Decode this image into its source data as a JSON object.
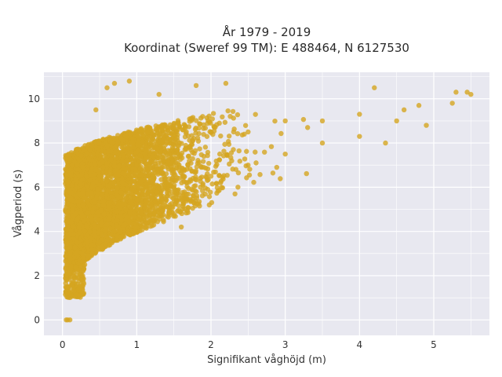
{
  "chart_data": {
    "type": "scatter",
    "title_line1": "År 1979 - 2019",
    "title_line2": "Koordinat (Sweref 99 TM): E 488464, N 6127530",
    "xlabel": "Signifikant våghöjd (m)",
    "ylabel": "Vågperiod (s)",
    "xlim": [
      -0.25,
      5.75
    ],
    "ylim": [
      -0.7,
      11.2
    ],
    "x_ticks": [
      0,
      1,
      2,
      3,
      4,
      5
    ],
    "y_ticks": [
      0,
      2,
      4,
      6,
      8,
      10
    ],
    "grid": true,
    "background": "#e8e8f0",
    "marker_color": "#d4a521",
    "series": [
      {
        "points": [
          [
            0.05,
            0.0
          ],
          [
            0.07,
            0.0
          ],
          [
            0.1,
            0.0
          ],
          [
            0.05,
            1.8
          ],
          [
            0.08,
            1.5
          ],
          [
            0.1,
            1.2
          ],
          [
            0.12,
            1.1
          ],
          [
            0.06,
            2.5
          ],
          [
            0.1,
            3.0
          ],
          [
            0.15,
            2.0
          ],
          [
            0.2,
            2.2
          ],
          [
            0.2,
            3.5
          ],
          [
            0.3,
            2.5
          ],
          [
            0.3,
            4.0
          ],
          [
            0.4,
            3.0
          ],
          [
            0.5,
            3.5
          ],
          [
            0.3,
            5.5
          ],
          [
            0.4,
            6.0
          ],
          [
            0.5,
            6.5
          ],
          [
            0.6,
            7.0
          ],
          [
            0.7,
            4.0
          ],
          [
            0.8,
            4.5
          ],
          [
            1.0,
            5.0
          ],
          [
            1.0,
            7.0
          ],
          [
            1.2,
            5.5
          ],
          [
            1.5,
            6.0
          ],
          [
            1.5,
            8.0
          ],
          [
            2.0,
            6.5
          ],
          [
            2.0,
            8.5
          ],
          [
            2.5,
            7.0
          ],
          [
            2.5,
            8.5
          ],
          [
            3.0,
            7.5
          ],
          [
            3.0,
            9.0
          ],
          [
            3.5,
            8.0
          ],
          [
            3.5,
            9.0
          ],
          [
            4.0,
            8.3
          ],
          [
            4.0,
            9.3
          ],
          [
            4.2,
            10.5
          ],
          [
            4.5,
            9.0
          ],
          [
            4.6,
            9.5
          ],
          [
            4.8,
            9.7
          ],
          [
            4.9,
            8.8
          ],
          [
            5.25,
            9.8
          ],
          [
            5.3,
            10.3
          ],
          [
            5.45,
            10.3
          ],
          [
            5.5,
            10.2
          ],
          [
            0.6,
            10.5
          ],
          [
            0.7,
            10.7
          ],
          [
            0.9,
            10.8
          ],
          [
            2.2,
            10.7
          ],
          [
            1.8,
            10.6
          ],
          [
            1.3,
            10.2
          ],
          [
            4.35,
            8.0
          ],
          [
            1.6,
            4.2
          ],
          [
            0.2,
            7.0
          ],
          [
            0.45,
            9.5
          ]
        ]
      }
    ]
  }
}
